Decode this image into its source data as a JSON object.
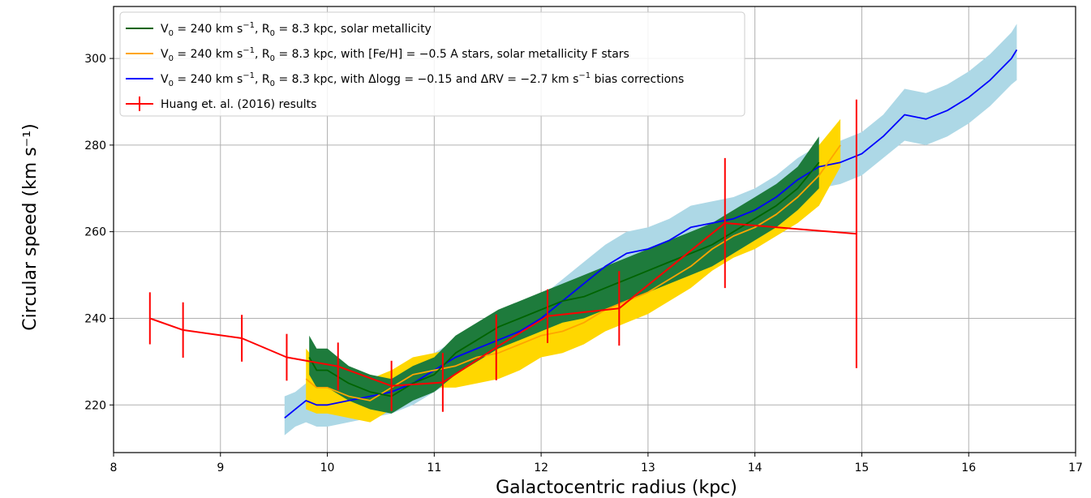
{
  "chart_data": {
    "type": "line",
    "xlabel": "Galactocentric radius (kpc)",
    "ylabel": "Circular speed (km s⁻¹)",
    "xlim": [
      8,
      17
    ],
    "ylim": [
      209,
      312
    ],
    "x_ticks": [
      8,
      9,
      10,
      11,
      12,
      13,
      14,
      15,
      16,
      17
    ],
    "y_ticks": [
      220,
      240,
      260,
      280,
      300
    ],
    "grid": true,
    "legend_position": "top-left",
    "series": [
      {
        "name": "V0 = 240 km s-1, R0 = 8.3 kpc, with Δlogg = -0.15 and ΔRV = -2.7 km s-1 bias corrections",
        "color": "#0000ff",
        "band_color": "#add8e6",
        "x": [
          9.6,
          9.7,
          9.8,
          9.9,
          10.0,
          10.2,
          10.4,
          10.6,
          10.8,
          11.0,
          11.2,
          11.4,
          11.6,
          11.8,
          12.0,
          12.2,
          12.4,
          12.6,
          12.8,
          13.0,
          13.2,
          13.4,
          13.6,
          13.8,
          14.0,
          14.2,
          14.4,
          14.6,
          14.8,
          15.0,
          15.2,
          15.4,
          15.6,
          15.8,
          16.0,
          16.2,
          16.4,
          16.45
        ],
        "y": [
          217,
          219,
          221,
          220,
          220,
          221,
          222,
          223,
          225,
          228,
          231,
          233,
          235,
          237,
          240,
          244,
          248,
          252,
          255,
          256,
          258,
          261,
          262,
          263,
          265,
          268,
          272,
          275,
          276,
          278,
          282,
          287,
          286,
          288,
          291,
          295,
          300,
          302
        ],
        "band_lower": [
          213,
          215,
          216,
          215,
          215,
          216,
          217,
          218,
          220,
          223,
          226,
          228,
          230,
          232,
          235,
          239,
          243,
          247,
          250,
          251,
          253,
          256,
          257,
          258,
          260,
          263,
          267,
          270,
          271,
          273,
          277,
          281,
          280,
          282,
          285,
          289,
          294,
          295
        ],
        "band_upper": [
          222,
          223,
          225,
          224,
          224,
          225,
          226,
          227,
          229,
          232,
          235,
          237,
          240,
          242,
          245,
          249,
          253,
          257,
          260,
          261,
          263,
          266,
          267,
          268,
          270,
          273,
          277,
          280,
          281,
          283,
          287,
          293,
          292,
          294,
          297,
          301,
          306,
          308
        ]
      },
      {
        "name": "V0 = 240 km s-1, R0 = 8.3 kpc, with [Fe/H] = -0.5 A stars, solar metallicity F stars",
        "color": "#ffa500",
        "band_color": "#ffd700",
        "x": [
          9.8,
          9.9,
          10.0,
          10.2,
          10.4,
          10.6,
          10.8,
          11.0,
          11.2,
          11.4,
          11.6,
          11.8,
          12.0,
          12.2,
          12.4,
          12.6,
          12.8,
          13.0,
          13.2,
          13.4,
          13.6,
          13.8,
          14.0,
          14.2,
          14.4,
          14.6,
          14.8
        ],
        "y": [
          226,
          224,
          224,
          222,
          221,
          224,
          227,
          228,
          229,
          231,
          232,
          234,
          236,
          237,
          239,
          242,
          244,
          246,
          249,
          252,
          256,
          259,
          261,
          264,
          268,
          273,
          280
        ],
        "band_lower": [
          219,
          218,
          218,
          217,
          216,
          219,
          222,
          224,
          224,
          225,
          226,
          228,
          231,
          232,
          234,
          237,
          239,
          241,
          244,
          247,
          251,
          254,
          256,
          259,
          262,
          266,
          275
        ],
        "band_upper": [
          233,
          230,
          229,
          227,
          226,
          228,
          231,
          232,
          233,
          236,
          238,
          240,
          241,
          242,
          244,
          247,
          249,
          251,
          254,
          257,
          261,
          264,
          266,
          269,
          274,
          280,
          286
        ]
      },
      {
        "name": "V0 = 240 km s-1, R0 = 8.3 kpc, solar metallicity",
        "color": "#006400",
        "band_color": "#1e7b3c",
        "x": [
          9.83,
          9.9,
          10.0,
          10.2,
          10.4,
          10.6,
          10.8,
          11.0,
          11.2,
          11.4,
          11.6,
          11.8,
          12.0,
          12.2,
          12.4,
          12.6,
          12.8,
          13.0,
          13.2,
          13.4,
          13.6,
          13.8,
          14.0,
          14.2,
          14.4,
          14.6
        ],
        "y": [
          231,
          228,
          228,
          225,
          223,
          222,
          225,
          227,
          232,
          235,
          238,
          240,
          242,
          244,
          245,
          247,
          249,
          251,
          253,
          255,
          257,
          260,
          263,
          266,
          270,
          276
        ],
        "band_lower": [
          227,
          224,
          224,
          221,
          219,
          218,
          221,
          223,
          227,
          230,
          233,
          235,
          237,
          239,
          240,
          242,
          244,
          246,
          248,
          250,
          252,
          255,
          258,
          261,
          265,
          270
        ],
        "band_upper": [
          236,
          233,
          233,
          229,
          227,
          226,
          229,
          231,
          236,
          239,
          242,
          244,
          246,
          248,
          250,
          252,
          254,
          256,
          258,
          260,
          262,
          265,
          268,
          271,
          275,
          282
        ]
      },
      {
        "name": "Huang et. al. (2016) results",
        "color": "#ff0000",
        "x": [
          8.34,
          8.65,
          9.2,
          9.62,
          10.1,
          10.6,
          11.08,
          11.58,
          12.06,
          12.73,
          13.72,
          14.95
        ],
        "y": [
          240,
          237.3,
          235.4,
          231,
          228.9,
          224.4,
          225.2,
          233.3,
          240.5,
          242.3,
          262,
          259.5
        ],
        "yerr": [
          6,
          6.4,
          5.4,
          5.4,
          5.5,
          5.8,
          6.8,
          7.6,
          6.2,
          8.6,
          15,
          31
        ],
        "errorbars": true
      }
    ],
    "legend": [
      {
        "series": 2,
        "text_main": "V",
        "sub": "0",
        "text": " = 240 km s",
        "sup": "−1",
        "text2": ", R",
        "sub2": "0",
        "text3": " = 8.3 kpc, solar metallicity"
      },
      {
        "series": 1,
        "text_main": "V",
        "sub": "0",
        "text": " = 240 km s",
        "sup": "−1",
        "text2": ", R",
        "sub2": "0",
        "text3": " = 8.3 kpc, with [Fe/H] = −0.5 A stars, solar metallicity F stars"
      },
      {
        "series": 0,
        "text_main": "V",
        "sub": "0",
        "text": " = 240 km s",
        "sup": "−1",
        "text2": ", R",
        "sub2": "0",
        "text3": " = 8.3 kpc, with Δlogg = −0.15 and ΔRV = −2.7 km s",
        "sup2": "−1",
        "text4": " bias corrections"
      },
      {
        "series": 3,
        "text_main": "Huang et. al. (2016) results"
      }
    ]
  }
}
